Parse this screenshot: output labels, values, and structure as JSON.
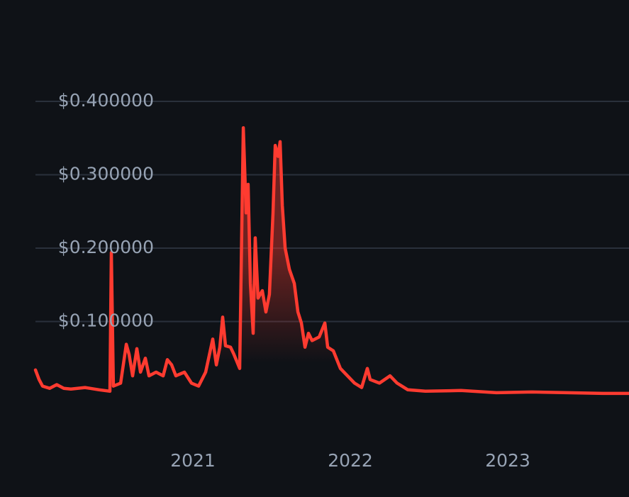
{
  "chart_data": {
    "type": "line",
    "x": [
      2020.0,
      2020.023,
      2020.045,
      2020.09,
      2020.135,
      2020.18,
      2020.225,
      2020.315,
      2020.405,
      2020.473,
      2020.482,
      2020.495,
      2020.541,
      2020.577,
      2020.595,
      2020.617,
      2020.644,
      2020.667,
      2020.698,
      2020.721,
      2020.766,
      2020.811,
      2020.838,
      2020.865,
      2020.892,
      2020.946,
      2020.991,
      2021.036,
      2021.081,
      2021.126,
      2021.149,
      2021.171,
      2021.189,
      2021.207,
      2021.239,
      2021.261,
      2021.297,
      2021.32,
      2021.338,
      2021.351,
      2021.365,
      2021.383,
      2021.396,
      2021.414,
      2021.441,
      2021.464,
      2021.486,
      2021.509,
      2021.523,
      2021.541,
      2021.554,
      2021.568,
      2021.586,
      2021.613,
      2021.644,
      2021.667,
      2021.689,
      2021.712,
      2021.734,
      2021.757,
      2021.802,
      2021.838,
      2021.856,
      2021.892,
      2021.937,
      2021.982,
      2022.027,
      2022.072,
      2022.108,
      2022.126,
      2022.185,
      2022.252,
      2022.297,
      2022.365,
      2022.477,
      2022.703,
      2022.928,
      2023.153,
      2023.378,
      2023.604,
      2023.77
    ],
    "series": [
      {
        "color": "#ff3b30",
        "values": [
          0.034,
          0.021,
          0.012,
          0.009,
          0.014,
          0.009,
          0.008,
          0.01,
          0.007,
          0.005,
          0.194,
          0.012,
          0.016,
          0.069,
          0.055,
          0.026,
          0.063,
          0.031,
          0.05,
          0.026,
          0.031,
          0.026,
          0.048,
          0.041,
          0.026,
          0.031,
          0.016,
          0.012,
          0.031,
          0.076,
          0.041,
          0.065,
          0.106,
          0.067,
          0.065,
          0.055,
          0.036,
          0.364,
          0.248,
          0.287,
          0.152,
          0.084,
          0.214,
          0.132,
          0.142,
          0.113,
          0.137,
          0.248,
          0.34,
          0.325,
          0.345,
          0.258,
          0.2,
          0.171,
          0.152,
          0.113,
          0.098,
          0.065,
          0.084,
          0.074,
          0.079,
          0.098,
          0.065,
          0.06,
          0.036,
          0.026,
          0.016,
          0.01,
          0.036,
          0.021,
          0.016,
          0.026,
          0.016,
          0.007,
          0.005,
          0.006,
          0.003,
          0.004,
          0.003,
          0.002,
          0.002
        ]
      }
    ],
    "xlim": [
      2020.0,
      2023.77
    ],
    "xticks": [
      2021,
      2022,
      2023
    ],
    "ylim": [
      0,
      0.4
    ],
    "yticks": [
      {
        "value": 0.1,
        "label": "$0.100000"
      },
      {
        "value": 0.2,
        "label": "$0.200000"
      },
      {
        "value": 0.3,
        "label": "$0.300000"
      },
      {
        "value": 0.4,
        "label": "$0.400000"
      }
    ],
    "grid": true
  }
}
